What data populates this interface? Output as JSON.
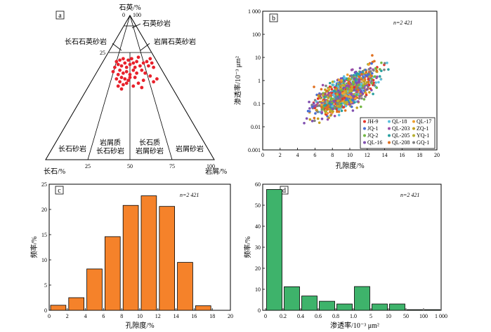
{
  "panels": {
    "a": {
      "letter": "a"
    },
    "b": {
      "letter": "b",
      "n_label": "n=2 421"
    },
    "c": {
      "letter": "c",
      "n_label": "n=2 421"
    },
    "d": {
      "letter": "d",
      "n_label": "n=2 421"
    }
  },
  "chart_data": [
    {
      "type": "ternary",
      "panel": "a",
      "apex_top": "石英/%",
      "apex_left": "长石/%",
      "apex_right": "岩屑/%",
      "corner_ticks": {
        "top_0": "0",
        "top_100": "100",
        "right_100": "100"
      },
      "side_ticks": [
        "25",
        "25",
        "50",
        "75"
      ],
      "field_labels": [
        "石英砂岩",
        "长石石英砂岩",
        "岩屑石英砂岩",
        "长石砂岩",
        "岩屑质",
        "长石砂岩",
        "长石质",
        "岩屑砂岩",
        "岩屑砂岩"
      ],
      "points_note": "sandstone samples plotted in Q-F-R triangle",
      "points": [
        [
          0.42,
          0.32
        ],
        [
          0.43,
          0.34
        ],
        [
          0.44,
          0.31
        ],
        [
          0.45,
          0.35
        ],
        [
          0.46,
          0.3
        ],
        [
          0.47,
          0.33
        ],
        [
          0.48,
          0.36
        ],
        [
          0.49,
          0.31
        ],
        [
          0.5,
          0.34
        ],
        [
          0.51,
          0.3
        ],
        [
          0.52,
          0.33
        ],
        [
          0.53,
          0.36
        ],
        [
          0.54,
          0.32
        ],
        [
          0.55,
          0.29
        ],
        [
          0.44,
          0.38
        ],
        [
          0.46,
          0.4
        ],
        [
          0.48,
          0.39
        ],
        [
          0.5,
          0.41
        ],
        [
          0.52,
          0.38
        ],
        [
          0.54,
          0.4
        ],
        [
          0.41,
          0.36
        ],
        [
          0.43,
          0.41
        ],
        [
          0.45,
          0.43
        ],
        [
          0.47,
          0.44
        ],
        [
          0.49,
          0.45
        ],
        [
          0.4,
          0.39
        ],
        [
          0.42,
          0.44
        ],
        [
          0.44,
          0.46
        ],
        [
          0.46,
          0.48
        ],
        [
          0.48,
          0.47
        ],
        [
          0.5,
          0.43
        ],
        [
          0.53,
          0.43
        ],
        [
          0.56,
          0.35
        ],
        [
          0.57,
          0.38
        ],
        [
          0.58,
          0.33
        ],
        [
          0.6,
          0.32
        ],
        [
          0.61,
          0.35
        ],
        [
          0.62,
          0.3
        ],
        [
          0.63,
          0.33
        ],
        [
          0.64,
          0.36
        ],
        [
          0.59,
          0.4
        ],
        [
          0.62,
          0.42
        ],
        [
          0.58,
          0.45
        ],
        [
          0.64,
          0.46
        ],
        [
          0.66,
          0.44
        ],
        [
          0.55,
          0.47
        ],
        [
          0.57,
          0.5
        ],
        [
          0.52,
          0.49
        ],
        [
          0.45,
          0.51
        ],
        [
          0.43,
          0.49
        ]
      ]
    },
    {
      "type": "scatter",
      "panel": "b",
      "xlabel": "孔隙度/%",
      "ylabel": "渗透率/10⁻³ μm²",
      "xlim": [
        0,
        20
      ],
      "ylim_log": [
        0.001,
        1000
      ],
      "xticks": [
        "0",
        "2",
        "4",
        "6",
        "8",
        "10",
        "12",
        "14",
        "16",
        "18",
        "20"
      ],
      "yticks": [
        "0.001",
        "0.01",
        "0.1",
        "1",
        "10",
        "100",
        "1 000"
      ],
      "legend": [
        {
          "name": "JH-9",
          "color": "#e6332a"
        },
        {
          "name": "QL-18",
          "color": "#5bc0de"
        },
        {
          "name": "QL-17",
          "color": "#f0a030"
        },
        {
          "name": "JQ-1",
          "color": "#4a6fd4"
        },
        {
          "name": "QL-203",
          "color": "#9b4fa8"
        },
        {
          "name": "ZQ-1",
          "color": "#c2a020"
        },
        {
          "name": "JQ-2",
          "color": "#73b844"
        },
        {
          "name": "QL-205",
          "color": "#28a0a0"
        },
        {
          "name": "YQ-1",
          "color": "#b8b030"
        },
        {
          "name": "QL-16",
          "color": "#8050b0"
        },
        {
          "name": "QL-208",
          "color": "#e07020"
        },
        {
          "name": "GQ-1",
          "color": "#808080"
        }
      ],
      "legend_position": "bottom-right"
    },
    {
      "type": "bar",
      "panel": "c",
      "xlabel": "孔隙度/%",
      "ylabel": "频率/%",
      "bin_edges": [
        0,
        2,
        4,
        6,
        8,
        10,
        12,
        14,
        16,
        18
      ],
      "values": [
        1.0,
        2.5,
        8.2,
        14.6,
        20.8,
        22.7,
        20.6,
        9.5,
        0.9
      ],
      "color": "#f5822a",
      "xticks": [
        "0",
        "2",
        "4",
        "6",
        "8",
        "10",
        "12",
        "14",
        "16",
        "18",
        "20"
      ],
      "yticks": [
        "0",
        "5",
        "10",
        "15",
        "20",
        "25"
      ],
      "ylim": [
        0,
        25
      ]
    },
    {
      "type": "bar",
      "panel": "d",
      "xlabel": "渗透率/10⁻³ μm²",
      "ylabel": "频率/%",
      "categories": [
        "0–0.2",
        "0.2–0.4",
        "0.4–0.6",
        "0.6–0.8",
        "0.8–1.0",
        "1.0–5",
        "5–10",
        "10–50",
        "50–100",
        "100–1 000"
      ],
      "values": [
        57.5,
        11.2,
        6.8,
        4.3,
        3.0,
        11.3,
        3.0,
        3.0,
        0.3,
        0.3
      ],
      "color": "#3eb36b",
      "xticks": [
        "0",
        "0.2",
        "0.4",
        "0.6",
        "0.8",
        "1.0",
        "5",
        "10",
        "50",
        "100",
        "1 000"
      ],
      "yticks": [
        "0",
        "10",
        "20",
        "30",
        "40",
        "50",
        "60"
      ],
      "ylim": [
        0,
        60
      ]
    }
  ]
}
